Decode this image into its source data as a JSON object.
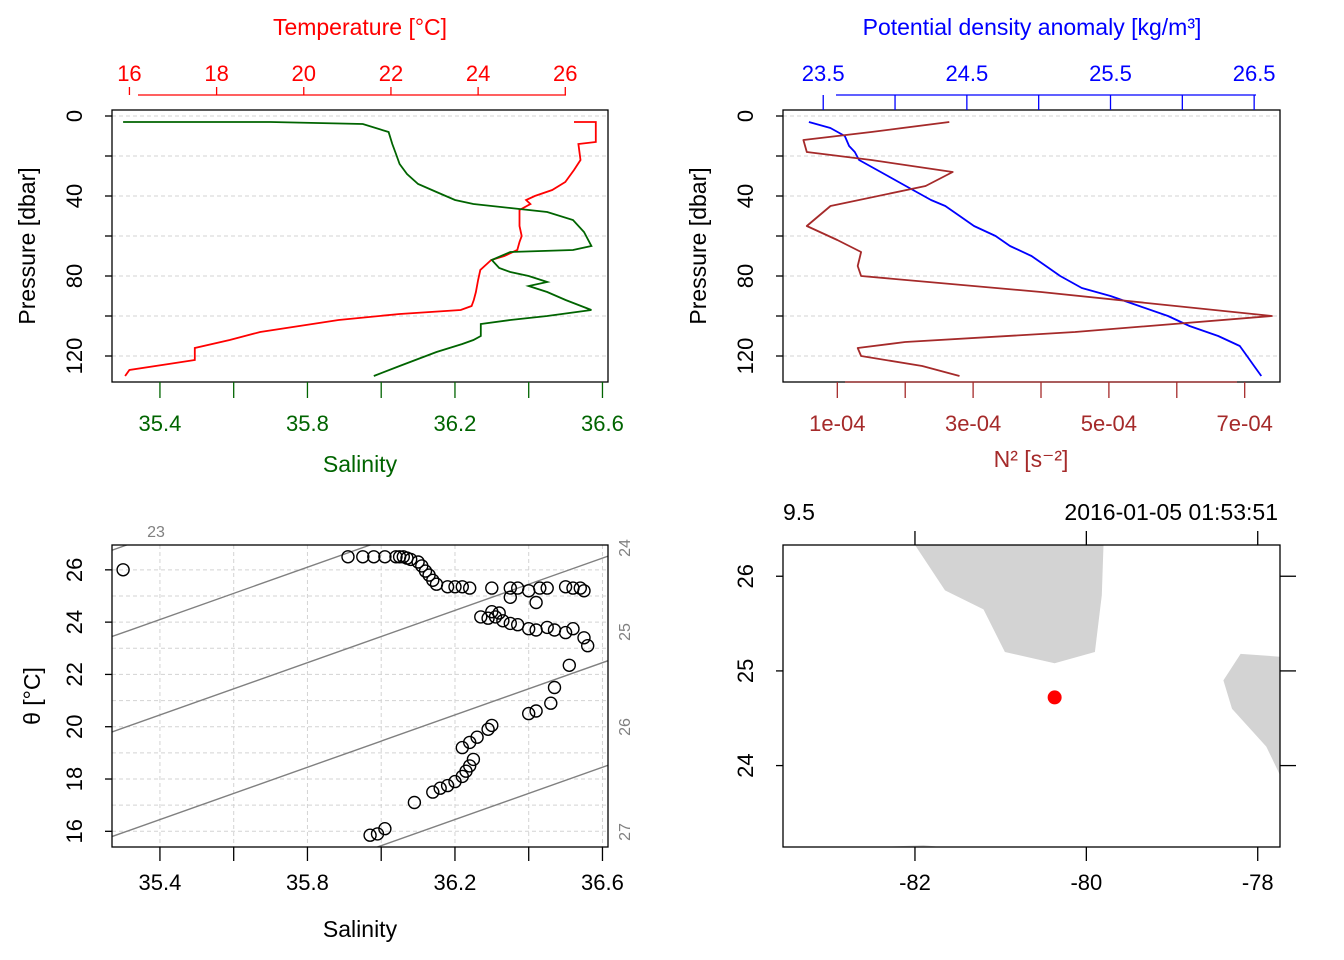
{
  "colors": {
    "temperature": "#ff0000",
    "salinity": "#006400",
    "density": "#0000ff",
    "n2": "#a52a2a",
    "isopycnal": "#808080",
    "grid": "#d3d3d3",
    "land": "#d3d3d3",
    "station": "#ff0000",
    "axis": "#000000"
  },
  "panels": {
    "ts_profile": {
      "top_label": "Temperature [°C]",
      "bottom_label": "Salinity",
      "left_label": "Pressure [dbar]",
      "top_ticks": [
        "16",
        "18",
        "20",
        "22",
        "24",
        "26"
      ],
      "bottom_ticks": [
        "35.4",
        "35.8",
        "36.2",
        "36.6"
      ],
      "left_ticks": [
        "0",
        "40",
        "80",
        "120"
      ]
    },
    "density_profile": {
      "top_label": "Potential density anomaly [kg/m³]",
      "bottom_label": "N² [s⁻²]",
      "left_label": "Pressure [dbar]",
      "top_ticks": [
        "23.5",
        "24.5",
        "25.5",
        "26.5"
      ],
      "bottom_ticks": [
        "1e-04",
        "3e-04",
        "5e-04",
        "7e-04"
      ],
      "left_ticks": [
        "0",
        "40",
        "80",
        "120"
      ]
    },
    "ts_diagram": {
      "xlabel": "Salinity",
      "ylabel": "θ [°C]",
      "x_ticks": [
        "35.4",
        "35.8",
        "36.2",
        "36.6"
      ],
      "y_ticks": [
        "16",
        "18",
        "20",
        "22",
        "24",
        "26"
      ],
      "isopycnal_labels": [
        "23",
        "24",
        "25",
        "26",
        "27"
      ]
    },
    "map": {
      "label_left": "9.5",
      "label_right": "2016-01-05 01:53:51",
      "x_ticks": [
        "-82",
        "-80",
        "-78"
      ],
      "y_ticks": [
        "24",
        "25",
        "26"
      ]
    }
  },
  "chart_data": [
    {
      "type": "line",
      "panel": "ts_profile",
      "ylim": [
        133,
        -3
      ],
      "top_xlim": [
        15.6,
        26.98
      ],
      "bottom_xlim": [
        35.27,
        36.615
      ],
      "series": [
        {
          "name": "Temperature [°C]",
          "axis": "top",
          "x": [
            26.2,
            26.7,
            26.7,
            26.3,
            26.35,
            26.2,
            26.0,
            25.7,
            25.3,
            25.1,
            25.2,
            24.95,
            24.95,
            24.95,
            25.0,
            24.95,
            24.9,
            24.6,
            24.3,
            24.05,
            24.0,
            23.95,
            23.9,
            23.85,
            23.6,
            22.2,
            20.8,
            19.9,
            19.0,
            18.3,
            17.5,
            17.5,
            16.9,
            16.0,
            15.9
          ],
          "y": [
            3,
            3,
            13,
            14,
            22,
            27,
            33,
            37,
            40,
            42,
            44,
            47,
            50,
            55,
            60,
            63,
            67,
            70,
            72,
            77,
            82,
            88,
            92,
            95,
            97,
            99,
            102,
            105,
            108,
            112,
            116,
            122,
            124,
            127,
            130
          ]
        },
        {
          "name": "Salinity",
          "axis": "bottom",
          "x": [
            35.3,
            35.7,
            35.95,
            36.02,
            36.03,
            36.04,
            36.05,
            36.07,
            36.1,
            36.15,
            36.2,
            36.25,
            36.35,
            36.45,
            36.52,
            36.55,
            36.57,
            36.52,
            36.35,
            36.3,
            36.32,
            36.35,
            36.4,
            36.45,
            36.4,
            36.45,
            36.5,
            36.57,
            36.45,
            36.35,
            36.27,
            36.27,
            36.25,
            36.22,
            36.15,
            36.05,
            35.98
          ],
          "y": [
            3,
            3,
            4,
            8,
            14,
            19,
            24,
            29,
            34,
            38,
            42,
            44,
            46,
            48,
            52,
            58,
            65,
            67,
            68,
            72,
            76,
            78,
            80,
            83,
            85,
            88,
            92,
            97,
            100,
            102,
            104,
            110,
            112,
            114,
            118,
            125,
            130
          ]
        }
      ]
    },
    {
      "type": "line",
      "panel": "density_profile",
      "ylim": [
        133,
        -3
      ],
      "top_xlim": [
        23.22,
        26.68
      ],
      "bottom_xlim": [
        2e-05,
        0.000752
      ],
      "series": [
        {
          "name": "Potential density anomaly",
          "axis": "top",
          "x": [
            23.4,
            23.55,
            23.65,
            23.68,
            23.72,
            23.75,
            23.85,
            23.95,
            24.05,
            24.15,
            24.25,
            24.35,
            24.45,
            24.55,
            24.7,
            24.8,
            24.95,
            25.05,
            25.15,
            25.3,
            25.5,
            25.7,
            25.9,
            26.05,
            26.25,
            26.4,
            26.45,
            26.5,
            26.55
          ],
          "y": [
            3,
            6,
            10,
            15,
            18,
            22,
            26,
            30,
            34,
            38,
            42,
            45,
            50,
            55,
            60,
            65,
            70,
            75,
            80,
            86,
            90,
            95,
            100,
            105,
            110,
            115,
            120,
            125,
            130
          ]
        },
        {
          "name": "N²",
          "axis": "bottom",
          "x": [
            0.000265,
            0.00015,
            5e-05,
            5.5e-05,
            0.00015,
            0.00027,
            0.00023,
            9e-05,
            5.5e-05,
            0.0001,
            0.000135,
            0.00013,
            0.000135,
            0.0004,
            0.00074,
            0.00045,
            0.0002,
            0.00013,
            0.000135,
            0.000225,
            0.00028
          ],
          "y": [
            3,
            8,
            12,
            18,
            22,
            28,
            35,
            45,
            55,
            62,
            68,
            75,
            80,
            88,
            100,
            108,
            113,
            116,
            120,
            125,
            130
          ]
        }
      ]
    },
    {
      "type": "scatter",
      "panel": "ts_diagram",
      "xlim": [
        35.27,
        36.615
      ],
      "ylim": [
        15.4,
        26.95
      ],
      "points": [
        [
          35.3,
          26.0
        ],
        [
          35.91,
          26.5
        ],
        [
          35.95,
          26.5
        ],
        [
          35.98,
          26.5
        ],
        [
          36.01,
          26.5
        ],
        [
          36.04,
          26.5
        ],
        [
          36.05,
          26.5
        ],
        [
          36.06,
          26.5
        ],
        [
          36.07,
          26.45
        ],
        [
          36.08,
          26.4
        ],
        [
          36.1,
          26.3
        ],
        [
          36.11,
          26.15
        ],
        [
          36.12,
          25.95
        ],
        [
          36.13,
          25.8
        ],
        [
          36.14,
          25.6
        ],
        [
          36.15,
          25.45
        ],
        [
          36.18,
          25.35
        ],
        [
          36.2,
          25.35
        ],
        [
          36.22,
          25.35
        ],
        [
          36.24,
          25.3
        ],
        [
          36.3,
          25.3
        ],
        [
          36.35,
          25.3
        ],
        [
          36.37,
          25.3
        ],
        [
          36.4,
          25.2
        ],
        [
          36.43,
          25.3
        ],
        [
          36.45,
          25.3
        ],
        [
          36.5,
          25.35
        ],
        [
          36.52,
          25.3
        ],
        [
          36.54,
          25.3
        ],
        [
          36.55,
          25.2
        ],
        [
          36.42,
          24.75
        ],
        [
          36.35,
          24.95
        ],
        [
          36.3,
          24.4
        ],
        [
          36.32,
          24.35
        ],
        [
          36.27,
          24.2
        ],
        [
          36.29,
          24.15
        ],
        [
          36.31,
          24.2
        ],
        [
          36.33,
          24.05
        ],
        [
          36.35,
          23.95
        ],
        [
          36.37,
          23.9
        ],
        [
          36.4,
          23.75
        ],
        [
          36.42,
          23.7
        ],
        [
          36.45,
          23.8
        ],
        [
          36.47,
          23.7
        ],
        [
          36.5,
          23.6
        ],
        [
          36.52,
          23.75
        ],
        [
          36.55,
          23.4
        ],
        [
          36.56,
          23.1
        ],
        [
          36.51,
          22.35
        ],
        [
          36.47,
          21.5
        ],
        [
          36.46,
          20.9
        ],
        [
          36.42,
          20.6
        ],
        [
          36.4,
          20.5
        ],
        [
          36.3,
          20.05
        ],
        [
          36.29,
          19.9
        ],
        [
          36.26,
          19.6
        ],
        [
          36.24,
          19.4
        ],
        [
          36.22,
          19.2
        ],
        [
          36.25,
          18.75
        ],
        [
          36.24,
          18.5
        ],
        [
          36.23,
          18.3
        ],
        [
          36.22,
          18.1
        ],
        [
          36.2,
          17.9
        ],
        [
          36.18,
          17.75
        ],
        [
          36.16,
          17.65
        ],
        [
          36.14,
          17.5
        ],
        [
          36.09,
          17.1
        ],
        [
          36.01,
          16.1
        ],
        [
          35.99,
          15.9
        ],
        [
          35.97,
          15.85
        ]
      ],
      "isopycnals": [
        {
          "label": "23",
          "s0": 35.27,
          "t0": 26.75,
          "slope": 5.0
        },
        {
          "label": "24",
          "s0": 35.27,
          "t0": 23.45,
          "slope": 5.0
        },
        {
          "label": "25",
          "s0": 35.27,
          "t0": 19.8,
          "slope": 5.0
        },
        {
          "label": "26",
          "s0": 35.27,
          "t0": 15.8,
          "slope": 5.0
        },
        {
          "label": "27",
          "s0": 35.27,
          "t0": 11.8,
          "slope": 5.0
        }
      ]
    },
    {
      "type": "map",
      "panel": "map",
      "xlim": [
        -83.54,
        -77.74
      ],
      "ylim": [
        23.14,
        26.33
      ],
      "station": {
        "lon": -80.37,
        "lat": 24.72
      },
      "land": [
        [
          [
            -82.0,
            26.33
          ],
          [
            -81.65,
            25.85
          ],
          [
            -81.2,
            25.65
          ],
          [
            -80.95,
            25.2
          ],
          [
            -80.37,
            25.08
          ],
          [
            -79.9,
            25.2
          ],
          [
            -79.82,
            25.8
          ],
          [
            -79.8,
            26.33
          ]
        ],
        [
          [
            -78.2,
            25.18
          ],
          [
            -77.74,
            25.15
          ],
          [
            -77.74,
            23.9
          ],
          [
            -77.9,
            24.2
          ],
          [
            -78.3,
            24.6
          ],
          [
            -78.4,
            24.9
          ]
        ],
        [
          [
            -82.4,
            23.14
          ],
          [
            -81.9,
            23.16
          ],
          [
            -81.7,
            23.14
          ]
        ]
      ]
    }
  ]
}
